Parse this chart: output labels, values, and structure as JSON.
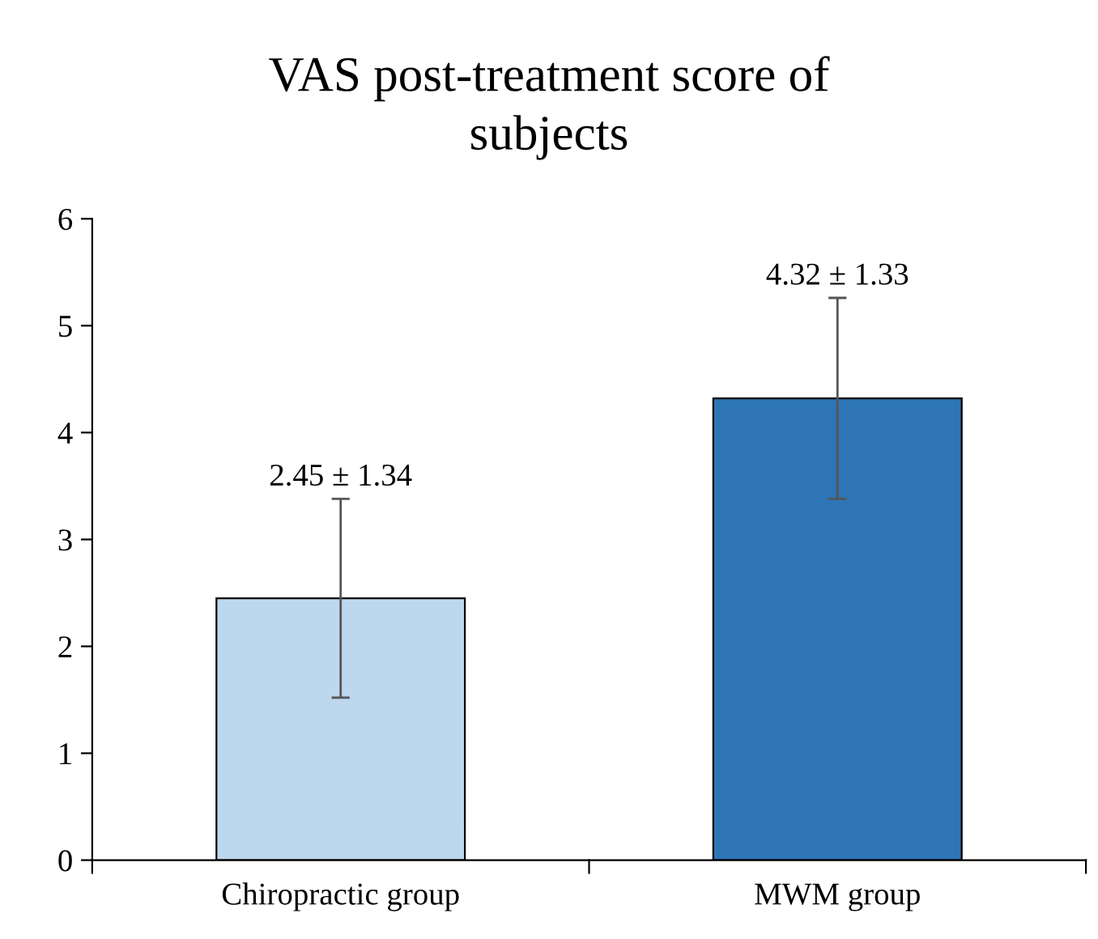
{
  "chart_data": {
    "type": "bar",
    "title": "VAS post-treatment score of\nsubjects",
    "categories": [
      "Chiropractic group",
      "MWM group"
    ],
    "values": [
      2.45,
      4.32
    ],
    "colors": [
      "#bdd7ee",
      "#2e75b6"
    ],
    "errors": [
      0.93,
      0.94
    ],
    "annotations": [
      {
        "text": "2.45 ± 1.34",
        "x": "Chiropractic group",
        "y": 3.38
      },
      {
        "text": "4.32 ± 1.33",
        "x": "MWM group",
        "y": 5.26
      }
    ],
    "ylim": [
      0,
      6
    ],
    "yticks": [
      0,
      1,
      2,
      3,
      4,
      5,
      6
    ]
  }
}
